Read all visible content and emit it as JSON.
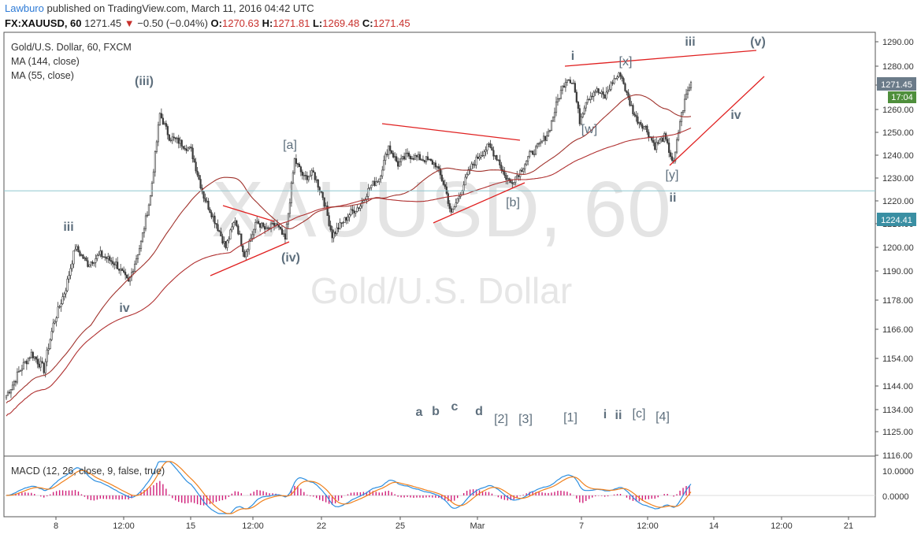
{
  "header": {
    "author": "Lawburo",
    "published": " published on TradingView.com, March 11, 2016 04:42 UTC"
  },
  "ohlc": {
    "symbol": "FX:XAUUSD, 60",
    "last": "1271.45",
    "arrow": "▼",
    "change": "−0.50 (−0.04%)",
    "o": "1270.63",
    "h": "1271.81",
    "l": "1269.48",
    "c": "1271.45"
  },
  "legend": {
    "title": "Gold/U.S. Dollar, 60, FXCM",
    "ma1": "MA (144, close)",
    "ma2": "MA (55, close)",
    "macd": "MACD (12, 26, close, 9, false, true)"
  },
  "watermark": {
    "symbol": "XAUUSD, 60",
    "name": "Gold/U.S. Dollar"
  },
  "badges": {
    "price": "1271.45",
    "countdown": "17:04",
    "hline": "1224.41"
  },
  "colors": {
    "candle": "#3a3a3a",
    "ma144": "#b03030",
    "ma55": "#a0322c",
    "trendline": "#e02020",
    "hline": "#8fc7cf",
    "macd": "#2d8fe0",
    "signal": "#f0801c",
    "histogram": "#d0207a",
    "waveLabel": "#5e6f7d"
  },
  "chart_data": {
    "type": "candlestick",
    "title": "Gold/U.S. Dollar, 60, FXCM",
    "x_ticks": [
      "8",
      "12:00",
      "15",
      "12:00",
      "22",
      "25",
      "Mar",
      "7",
      "12:00",
      "14",
      "12:00",
      "21"
    ],
    "y_ticks": [
      "1290.00",
      "1280.00",
      "1270.00",
      "1260.00",
      "1250.00",
      "1240.00",
      "1230.00",
      "1220.00",
      "1210.00",
      "1200.00",
      "1190.00",
      "1178.00",
      "1166.00",
      "1154.00",
      "1144.00",
      "1134.00",
      "1125.00",
      "1116.00"
    ],
    "macd_y_ticks": [
      "10.0000",
      "0.0000"
    ],
    "ylim": [
      1116,
      1290
    ],
    "horizontal_line": 1224.41,
    "close_path": [
      {
        "i": 0,
        "close": 1140
      },
      {
        "i": 8,
        "close": 1149
      },
      {
        "i": 16,
        "close": 1156
      },
      {
        "i": 24,
        "close": 1150
      },
      {
        "i": 30,
        "close": 1168
      },
      {
        "i": 38,
        "close": 1183
      },
      {
        "i": 44,
        "close": 1200
      },
      {
        "i": 52,
        "close": 1193
      },
      {
        "i": 60,
        "close": 1197
      },
      {
        "i": 70,
        "close": 1193
      },
      {
        "i": 78,
        "close": 1185
      },
      {
        "i": 86,
        "close": 1202
      },
      {
        "i": 92,
        "close": 1222
      },
      {
        "i": 98,
        "close": 1258
      },
      {
        "i": 104,
        "close": 1248
      },
      {
        "i": 110,
        "close": 1246
      },
      {
        "i": 118,
        "close": 1242
      },
      {
        "i": 126,
        "close": 1222
      },
      {
        "i": 134,
        "close": 1210
      },
      {
        "i": 140,
        "close": 1200
      },
      {
        "i": 146,
        "close": 1212
      },
      {
        "i": 152,
        "close": 1197
      },
      {
        "i": 160,
        "close": 1211
      },
      {
        "i": 166,
        "close": 1207
      },
      {
        "i": 172,
        "close": 1210
      },
      {
        "i": 178,
        "close": 1203
      },
      {
        "i": 184,
        "close": 1238
      },
      {
        "i": 190,
        "close": 1230
      },
      {
        "i": 196,
        "close": 1232
      },
      {
        "i": 202,
        "close": 1222
      },
      {
        "i": 208,
        "close": 1205
      },
      {
        "i": 214,
        "close": 1210
      },
      {
        "i": 220,
        "close": 1215
      },
      {
        "i": 226,
        "close": 1218
      },
      {
        "i": 232,
        "close": 1226
      },
      {
        "i": 238,
        "close": 1230
      },
      {
        "i": 244,
        "close": 1244
      },
      {
        "i": 250,
        "close": 1236
      },
      {
        "i": 256,
        "close": 1240
      },
      {
        "i": 262,
        "close": 1239
      },
      {
        "i": 268,
        "close": 1238
      },
      {
        "i": 274,
        "close": 1236
      },
      {
        "i": 280,
        "close": 1226
      },
      {
        "i": 284,
        "close": 1214
      },
      {
        "i": 290,
        "close": 1224
      },
      {
        "i": 296,
        "close": 1234
      },
      {
        "i": 302,
        "close": 1240
      },
      {
        "i": 308,
        "close": 1244
      },
      {
        "i": 314,
        "close": 1238
      },
      {
        "i": 318,
        "close": 1231
      },
      {
        "i": 322,
        "close": 1228
      },
      {
        "i": 328,
        "close": 1233
      },
      {
        "i": 334,
        "close": 1240
      },
      {
        "i": 340,
        "close": 1244
      },
      {
        "i": 346,
        "close": 1250
      },
      {
        "i": 352,
        "close": 1264
      },
      {
        "i": 358,
        "close": 1274
      },
      {
        "i": 362,
        "close": 1271
      },
      {
        "i": 366,
        "close": 1255
      },
      {
        "i": 370,
        "close": 1264
      },
      {
        "i": 376,
        "close": 1268
      },
      {
        "i": 382,
        "close": 1265
      },
      {
        "i": 388,
        "close": 1273
      },
      {
        "i": 392,
        "close": 1276
      },
      {
        "i": 396,
        "close": 1266
      },
      {
        "i": 402,
        "close": 1256
      },
      {
        "i": 408,
        "close": 1252
      },
      {
        "i": 414,
        "close": 1244
      },
      {
        "i": 420,
        "close": 1248
      },
      {
        "i": 426,
        "close": 1236
      },
      {
        "i": 430,
        "close": 1255
      },
      {
        "i": 434,
        "close": 1266
      },
      {
        "i": 437,
        "close": 1271
      }
    ]
  },
  "wave_labels": [
    {
      "text": "(iii)",
      "bold": true
    },
    {
      "text": "iii",
      "bold": true
    },
    {
      "text": "iv",
      "bold": true
    },
    {
      "text": "(iv)",
      "bold": true
    },
    {
      "text": "[a]",
      "bold": false
    },
    {
      "text": "[b]",
      "bold": false
    },
    {
      "text": "i",
      "bold": true
    },
    {
      "text": "[x]",
      "bold": false
    },
    {
      "text": "[w]",
      "bold": false
    },
    {
      "text": "[y]",
      "bold": false
    },
    {
      "text": "ii",
      "bold": true
    },
    {
      "text": "iii",
      "bold": true
    },
    {
      "text": "(v)",
      "bold": true
    },
    {
      "text": "iv",
      "bold": true
    },
    {
      "text": "a",
      "bold": true
    },
    {
      "text": "b",
      "bold": true
    },
    {
      "text": "c",
      "bold": true
    },
    {
      "text": "d",
      "bold": true
    },
    {
      "text": "[2]",
      "bold": false
    },
    {
      "text": "[3]",
      "bold": false
    },
    {
      "text": "[1]",
      "bold": false
    },
    {
      "text": "i",
      "bold": true
    },
    {
      "text": "ii",
      "bold": true
    },
    {
      "text": "[c]",
      "bold": false
    },
    {
      "text": "[4]",
      "bold": false
    }
  ]
}
